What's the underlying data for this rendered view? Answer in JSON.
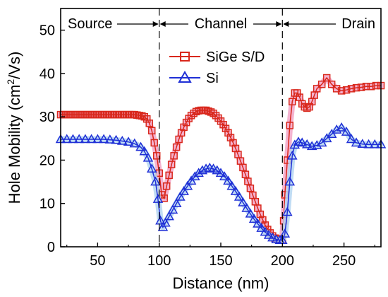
{
  "chart_data": {
    "type": "scatter",
    "title": "",
    "xlabel": "Distance (nm)",
    "ylabel_main": "Hole Mobility (cm",
    "ylabel_sup": "2",
    "ylabel_tail": "/Vs)",
    "xlim": [
      20,
      280
    ],
    "ylim": [
      0,
      55
    ],
    "xticks": [
      50,
      100,
      150,
      200,
      250
    ],
    "yticks": [
      0,
      10,
      20,
      30,
      40,
      50
    ],
    "grid": false,
    "legend_position": "top-center",
    "boundaries": [
      100,
      200
    ],
    "regions": [
      {
        "label": "Source"
      },
      {
        "label": "Channel"
      },
      {
        "label": "Drain"
      }
    ],
    "series": [
      {
        "name": "SiGe S/D",
        "marker": "square",
        "color": "#d9281c",
        "halo": "#f2a6c8",
        "points": [
          [
            20,
            30.5
          ],
          [
            22,
            30.5
          ],
          [
            24,
            30.5
          ],
          [
            26,
            30.5
          ],
          [
            28,
            30.5
          ],
          [
            30,
            30.5
          ],
          [
            32,
            30.5
          ],
          [
            34,
            30.5
          ],
          [
            36,
            30.5
          ],
          [
            38,
            30.5
          ],
          [
            40,
            30.5
          ],
          [
            42,
            30.5
          ],
          [
            44,
            30.5
          ],
          [
            46,
            30.5
          ],
          [
            48,
            30.5
          ],
          [
            50,
            30.5
          ],
          [
            52,
            30.5
          ],
          [
            54,
            30.5
          ],
          [
            56,
            30.5
          ],
          [
            58,
            30.5
          ],
          [
            60,
            30.5
          ],
          [
            62,
            30.5
          ],
          [
            64,
            30.5
          ],
          [
            66,
            30.5
          ],
          [
            68,
            30.5
          ],
          [
            70,
            30.5
          ],
          [
            72,
            30.5
          ],
          [
            74,
            30.5
          ],
          [
            76,
            30.5
          ],
          [
            78,
            30.5
          ],
          [
            80,
            30.5
          ],
          [
            82,
            30.4
          ],
          [
            84,
            30.3
          ],
          [
            86,
            30.2
          ],
          [
            88,
            30.0
          ],
          [
            90,
            29.5
          ],
          [
            92,
            28.5
          ],
          [
            94,
            26.8
          ],
          [
            96,
            24.0
          ],
          [
            98,
            21.0
          ],
          [
            100,
            17.0
          ],
          [
            102,
            12.0
          ],
          [
            104,
            11.2
          ],
          [
            106,
            14.0
          ],
          [
            108,
            16.5
          ],
          [
            110,
            19.0
          ],
          [
            112,
            21.0
          ],
          [
            114,
            23.0
          ],
          [
            116,
            24.8
          ],
          [
            118,
            26.3
          ],
          [
            120,
            27.6
          ],
          [
            122,
            28.7
          ],
          [
            124,
            29.6
          ],
          [
            126,
            30.3
          ],
          [
            128,
            30.8
          ],
          [
            130,
            31.2
          ],
          [
            132,
            31.4
          ],
          [
            134,
            31.5
          ],
          [
            136,
            31.5
          ],
          [
            138,
            31.5
          ],
          [
            140,
            31.3
          ],
          [
            142,
            31.1
          ],
          [
            144,
            30.8
          ],
          [
            146,
            30.3
          ],
          [
            148,
            29.7
          ],
          [
            150,
            29.0
          ],
          [
            152,
            28.2
          ],
          [
            154,
            27.3
          ],
          [
            156,
            26.3
          ],
          [
            158,
            25.2
          ],
          [
            160,
            24.0
          ],
          [
            162,
            22.7
          ],
          [
            164,
            21.3
          ],
          [
            166,
            19.8
          ],
          [
            168,
            18.3
          ],
          [
            170,
            16.7
          ],
          [
            172,
            15.1
          ],
          [
            174,
            13.5
          ],
          [
            176,
            11.9
          ],
          [
            178,
            10.4
          ],
          [
            180,
            8.9
          ],
          [
            182,
            7.5
          ],
          [
            184,
            6.2
          ],
          [
            186,
            5.0
          ],
          [
            188,
            4.0
          ],
          [
            190,
            3.2
          ],
          [
            192,
            2.5
          ],
          [
            194,
            2.0
          ],
          [
            196,
            1.8
          ],
          [
            198,
            1.7
          ],
          [
            200,
            1.8
          ],
          [
            201,
            6.0
          ],
          [
            202,
            12.0
          ],
          [
            204,
            20.0
          ],
          [
            206,
            28.0
          ],
          [
            208,
            33.5
          ],
          [
            210,
            35.5
          ],
          [
            212,
            35.5
          ],
          [
            214,
            34.5
          ],
          [
            216,
            33.0
          ],
          [
            218,
            32.3
          ],
          [
            220,
            32.0
          ],
          [
            222,
            32.3
          ],
          [
            224,
            33.5
          ],
          [
            226,
            35.0
          ],
          [
            228,
            36.5
          ],
          [
            232,
            37.5
          ],
          [
            236,
            39.0
          ],
          [
            240,
            37.5
          ],
          [
            244,
            36.5
          ],
          [
            248,
            36.0
          ],
          [
            252,
            36.2
          ],
          [
            256,
            36.5
          ],
          [
            260,
            36.7
          ],
          [
            264,
            36.8
          ],
          [
            268,
            37.0
          ],
          [
            272,
            37.0
          ],
          [
            276,
            37.2
          ],
          [
            280,
            37.2
          ]
        ]
      },
      {
        "name": "Si",
        "marker": "triangle",
        "color": "#1f2fd6",
        "halo": "#b5d6f2",
        "points": [
          [
            20,
            24.8
          ],
          [
            25,
            24.8
          ],
          [
            30,
            24.8
          ],
          [
            35,
            24.8
          ],
          [
            40,
            24.8
          ],
          [
            45,
            24.8
          ],
          [
            50,
            24.8
          ],
          [
            55,
            24.8
          ],
          [
            60,
            24.7
          ],
          [
            65,
            24.6
          ],
          [
            70,
            24.4
          ],
          [
            75,
            24.2
          ],
          [
            80,
            23.8
          ],
          [
            85,
            23.0
          ],
          [
            88,
            22.0
          ],
          [
            91,
            20.5
          ],
          [
            94,
            18.0
          ],
          [
            97,
            15.0
          ],
          [
            99,
            11.0
          ],
          [
            101,
            6.0
          ],
          [
            103,
            4.5
          ],
          [
            105,
            5.5
          ],
          [
            108,
            7.0
          ],
          [
            111,
            8.5
          ],
          [
            114,
            10.0
          ],
          [
            117,
            11.5
          ],
          [
            120,
            12.8
          ],
          [
            123,
            14.0
          ],
          [
            126,
            15.2
          ],
          [
            129,
            16.2
          ],
          [
            132,
            17.0
          ],
          [
            135,
            17.6
          ],
          [
            138,
            18.0
          ],
          [
            141,
            18.2
          ],
          [
            144,
            18.0
          ],
          [
            147,
            17.6
          ],
          [
            150,
            17.0
          ],
          [
            153,
            16.2
          ],
          [
            156,
            15.2
          ],
          [
            159,
            14.0
          ],
          [
            162,
            12.8
          ],
          [
            165,
            11.5
          ],
          [
            168,
            10.2
          ],
          [
            171,
            8.9
          ],
          [
            174,
            7.6
          ],
          [
            177,
            6.4
          ],
          [
            180,
            5.3
          ],
          [
            183,
            4.3
          ],
          [
            186,
            3.4
          ],
          [
            189,
            2.7
          ],
          [
            192,
            2.1
          ],
          [
            195,
            1.7
          ],
          [
            198,
            1.5
          ],
          [
            200,
            1.5
          ],
          [
            202,
            3.0
          ],
          [
            204,
            8.0
          ],
          [
            206,
            15.0
          ],
          [
            208,
            21.0
          ],
          [
            210,
            23.5
          ],
          [
            213,
            24.2
          ],
          [
            216,
            24.0
          ],
          [
            220,
            23.6
          ],
          [
            224,
            23.2
          ],
          [
            228,
            23.4
          ],
          [
            232,
            24.0
          ],
          [
            236,
            25.0
          ],
          [
            240,
            26.0
          ],
          [
            244,
            27.0
          ],
          [
            248,
            27.5
          ],
          [
            252,
            26.5
          ],
          [
            256,
            24.8
          ],
          [
            260,
            24.0
          ],
          [
            265,
            23.7
          ],
          [
            270,
            23.6
          ],
          [
            275,
            23.6
          ],
          [
            280,
            23.6
          ]
        ]
      }
    ]
  }
}
